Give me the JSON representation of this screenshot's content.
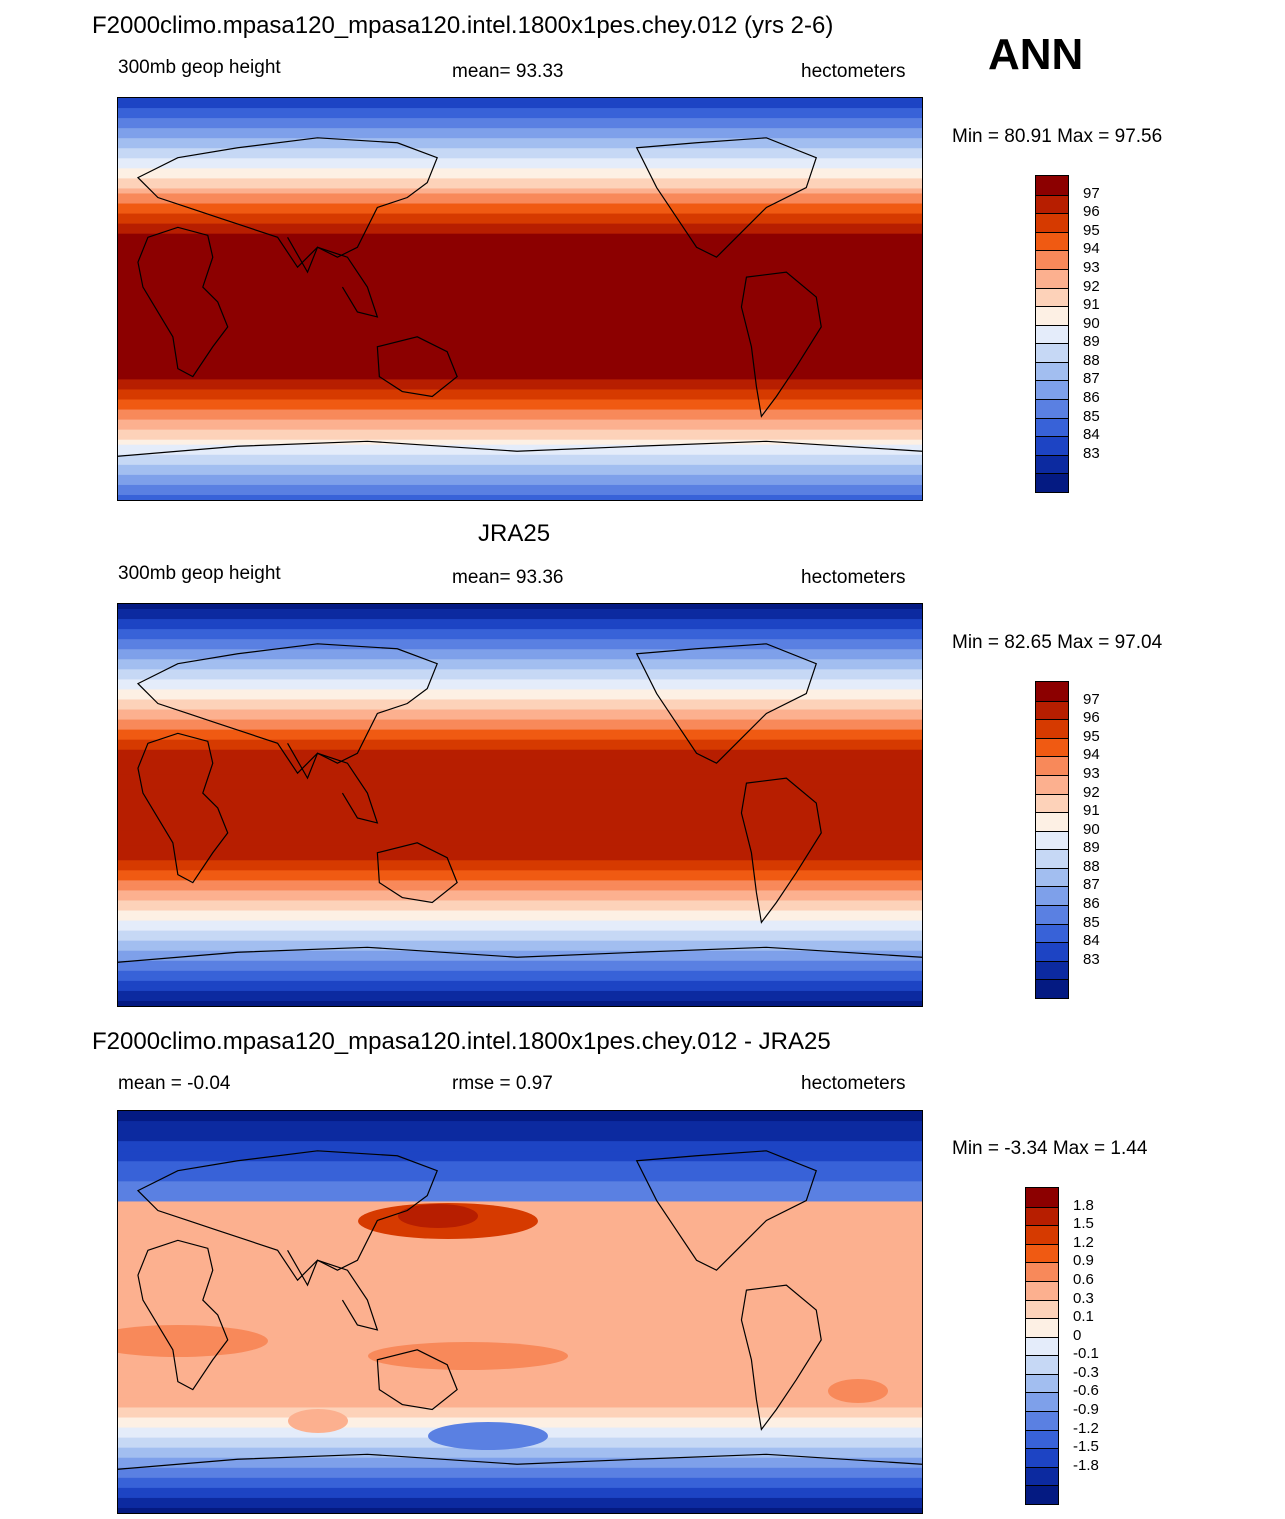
{
  "season": "ANN",
  "colors": {
    "height_scale": [
      "#8c0000",
      "#b71e00",
      "#d63a00",
      "#f05a12",
      "#f8895a",
      "#fcb08f",
      "#fdd2b9",
      "#fdf0e4",
      "#e4ecfa",
      "#c6d8f5",
      "#a2bef0",
      "#7ea0ea",
      "#5a80e2",
      "#3862d8",
      "#1d44c4",
      "#0c2aa0",
      "#041a82"
    ],
    "diff_scale": [
      "#8c0000",
      "#b71e00",
      "#d63a00",
      "#f05a12",
      "#f8895a",
      "#fcb08f",
      "#fdd2b9",
      "#fdf0e4",
      "#e4ecfa",
      "#c6d8f5",
      "#a2bef0",
      "#7ea0ea",
      "#5a80e2",
      "#3862d8",
      "#1d44c4",
      "#0c2aa0",
      "#041a82"
    ]
  },
  "panels": [
    {
      "id": "model",
      "title": "F2000climo.mpasa120_mpasa120.intel.1800x1pes.chey.012 (yrs 2-6)",
      "left": "300mb geop height",
      "center": "mean=  93.33",
      "right": "hectometers",
      "minmax": "Min =  80.91 Max =  97.56",
      "colorbar_labels": [
        "97",
        "96",
        "95",
        "94",
        "93",
        "92",
        "91",
        "90",
        "89",
        "88",
        "87",
        "86",
        "85",
        "84",
        "83"
      ]
    },
    {
      "id": "obs",
      "title": "JRA25",
      "left": "300mb geop height",
      "center": "mean=  93.36",
      "right": "hectometers",
      "minmax": "Min =  82.65 Max =  97.04",
      "colorbar_labels": [
        "97",
        "96",
        "95",
        "94",
        "93",
        "92",
        "91",
        "90",
        "89",
        "88",
        "87",
        "86",
        "85",
        "84",
        "83"
      ]
    },
    {
      "id": "diff",
      "title": "F2000climo.mpasa120_mpasa120.intel.1800x1pes.chey.012 - JRA25",
      "left": "mean =  -0.04",
      "center": "rmse =   0.97",
      "right": "hectometers",
      "minmax": "Min =  -3.34 Max =   1.44",
      "colorbar_labels": [
        "1.8",
        "1.5",
        "1.2",
        "0.9",
        "0.6",
        "0.3",
        "0.1",
        "0",
        "-0.1",
        "-0.3",
        "-0.6",
        "-0.9",
        "-1.2",
        "-1.5",
        "-1.8"
      ]
    }
  ]
}
